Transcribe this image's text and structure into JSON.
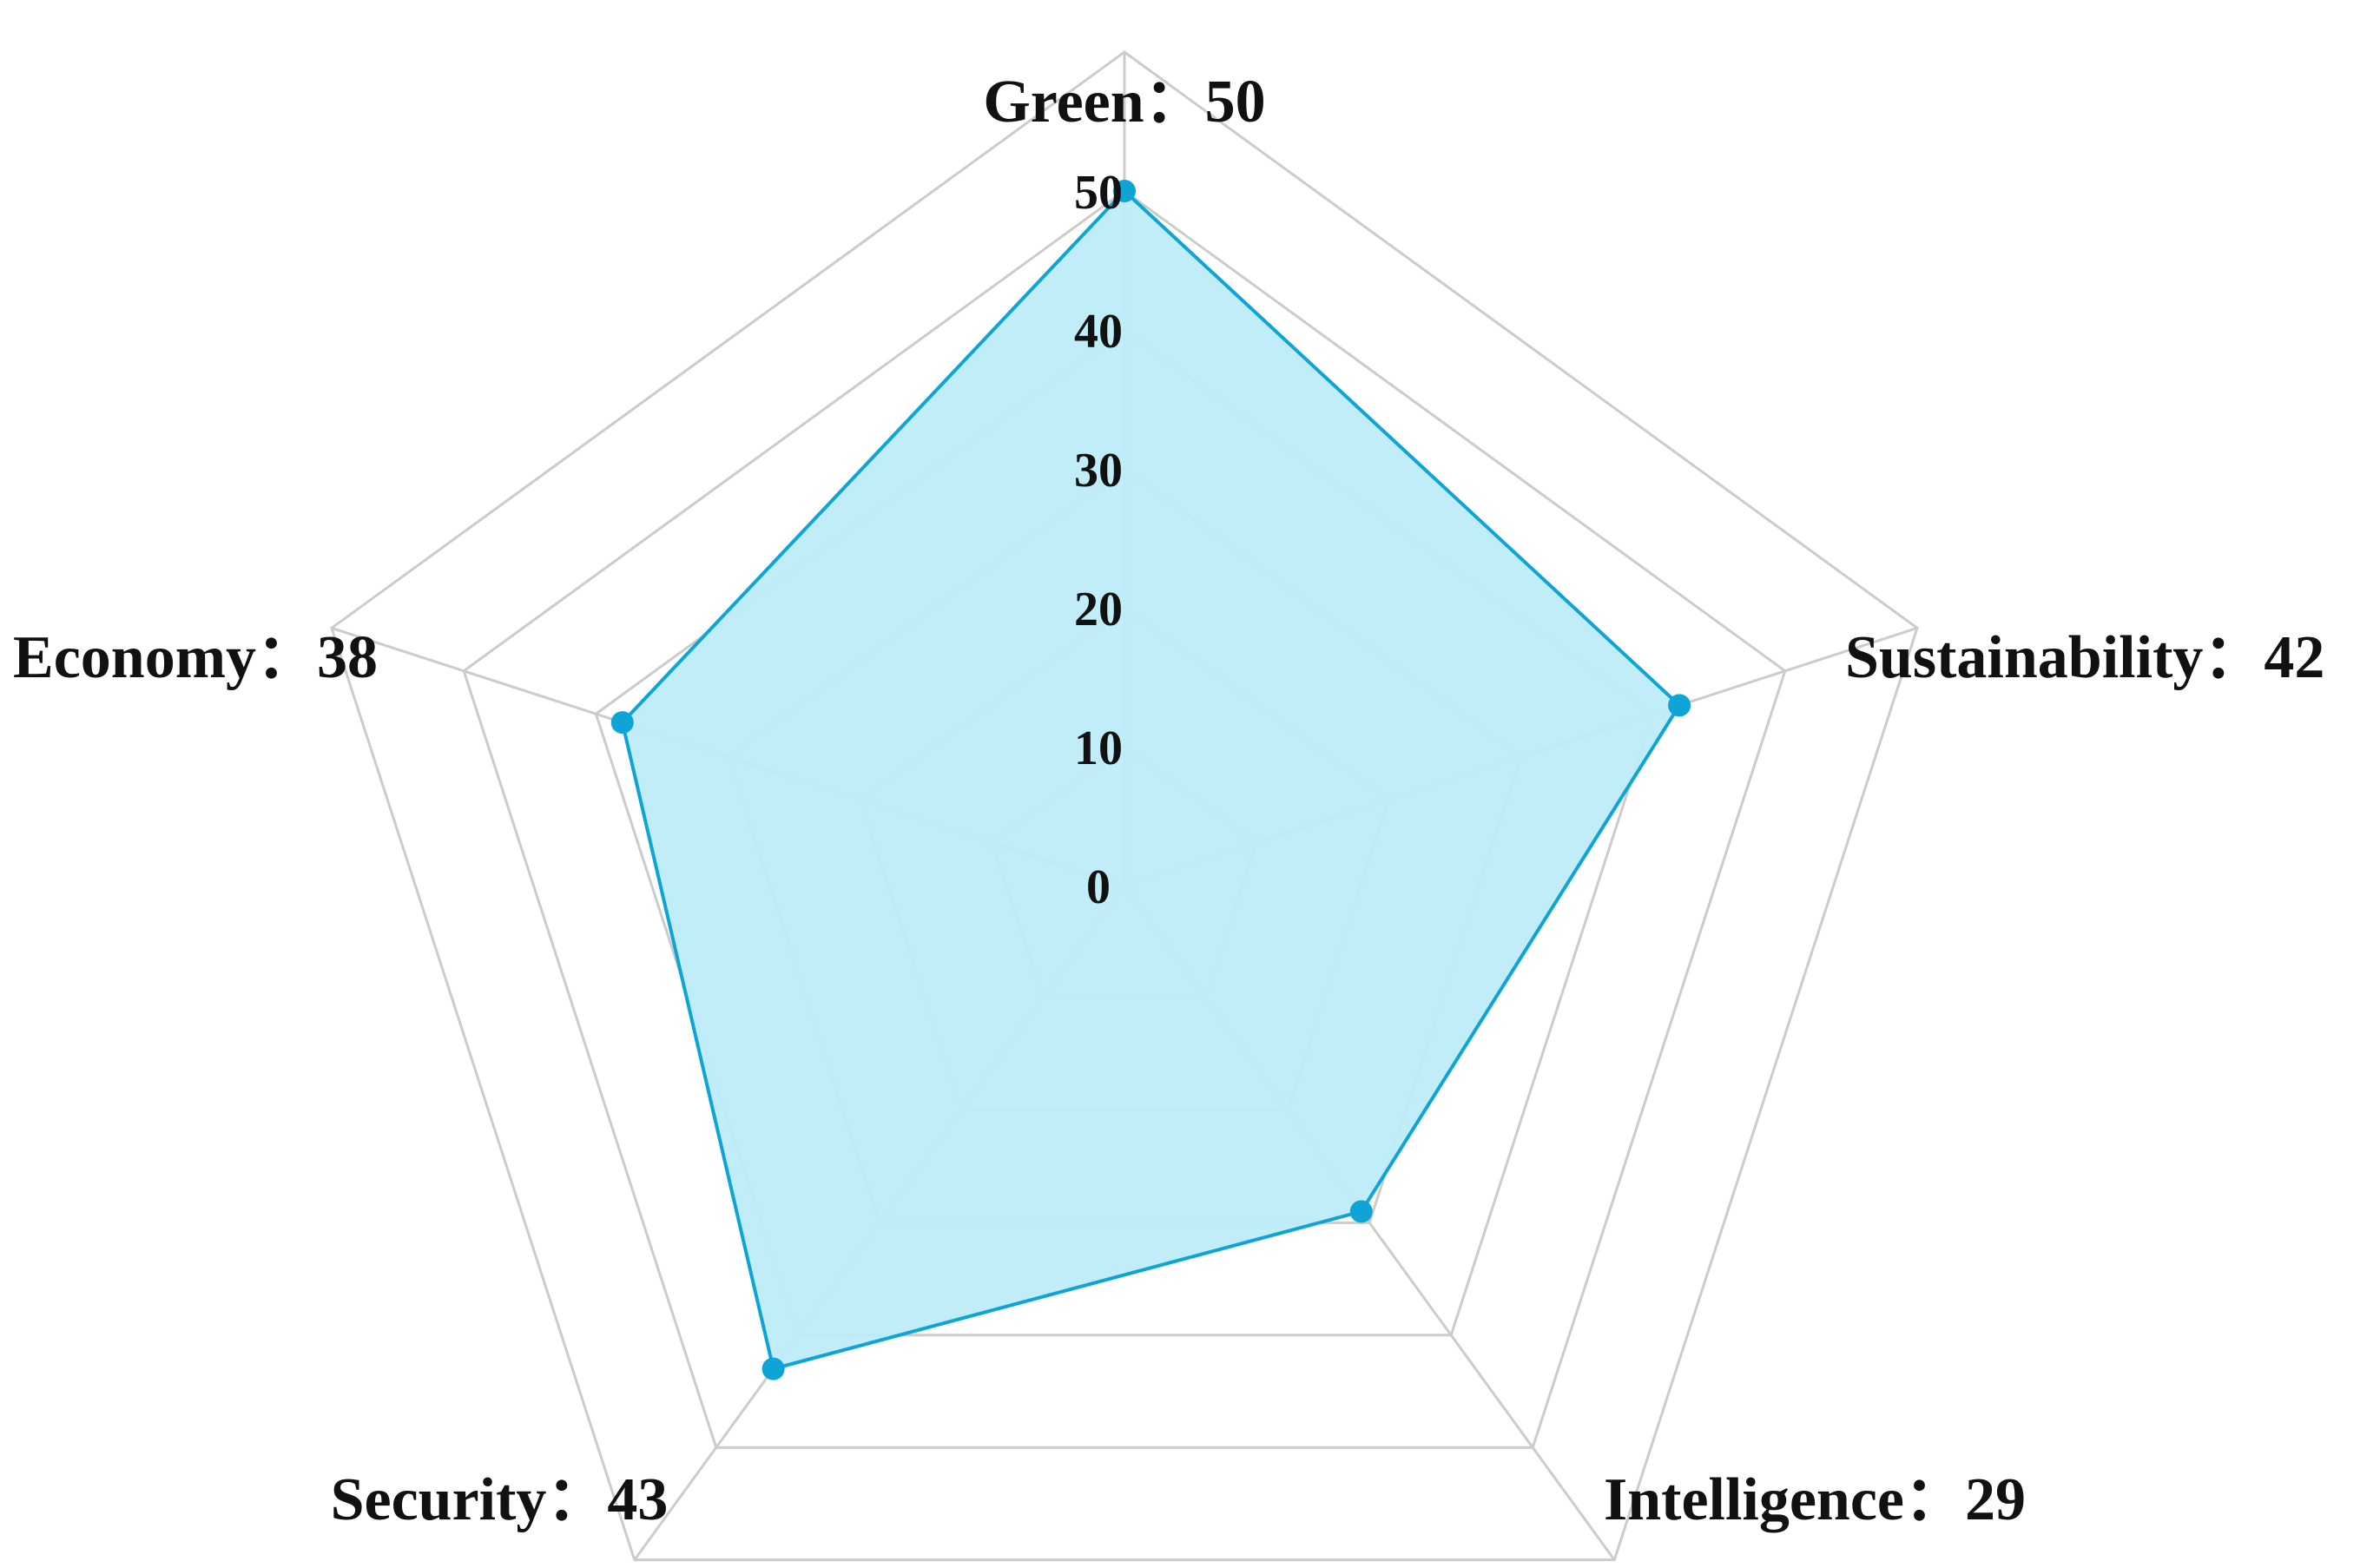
{
  "chart_data": {
    "type": "radar",
    "title": "",
    "axes": [
      "Green",
      "Sustainability",
      "Intelligence",
      "Security",
      "Economy"
    ],
    "axis_labels": [
      "Green：50",
      "Sustainability：42",
      "Intelligence：29",
      "Security：43",
      "Economy：38"
    ],
    "series": [
      {
        "values": [
          50,
          42,
          29,
          43,
          38
        ],
        "color": "#0ea5d6",
        "fill": "#bdecf8"
      }
    ],
    "range": [
      0,
      50
    ],
    "ring_max": 60,
    "ticks": [
      0,
      10,
      20,
      30,
      40,
      50
    ],
    "tick_labels": [
      "0",
      "10",
      "20",
      "30",
      "40",
      "50"
    ],
    "grid": true,
    "grid_color": "#cccccc"
  }
}
